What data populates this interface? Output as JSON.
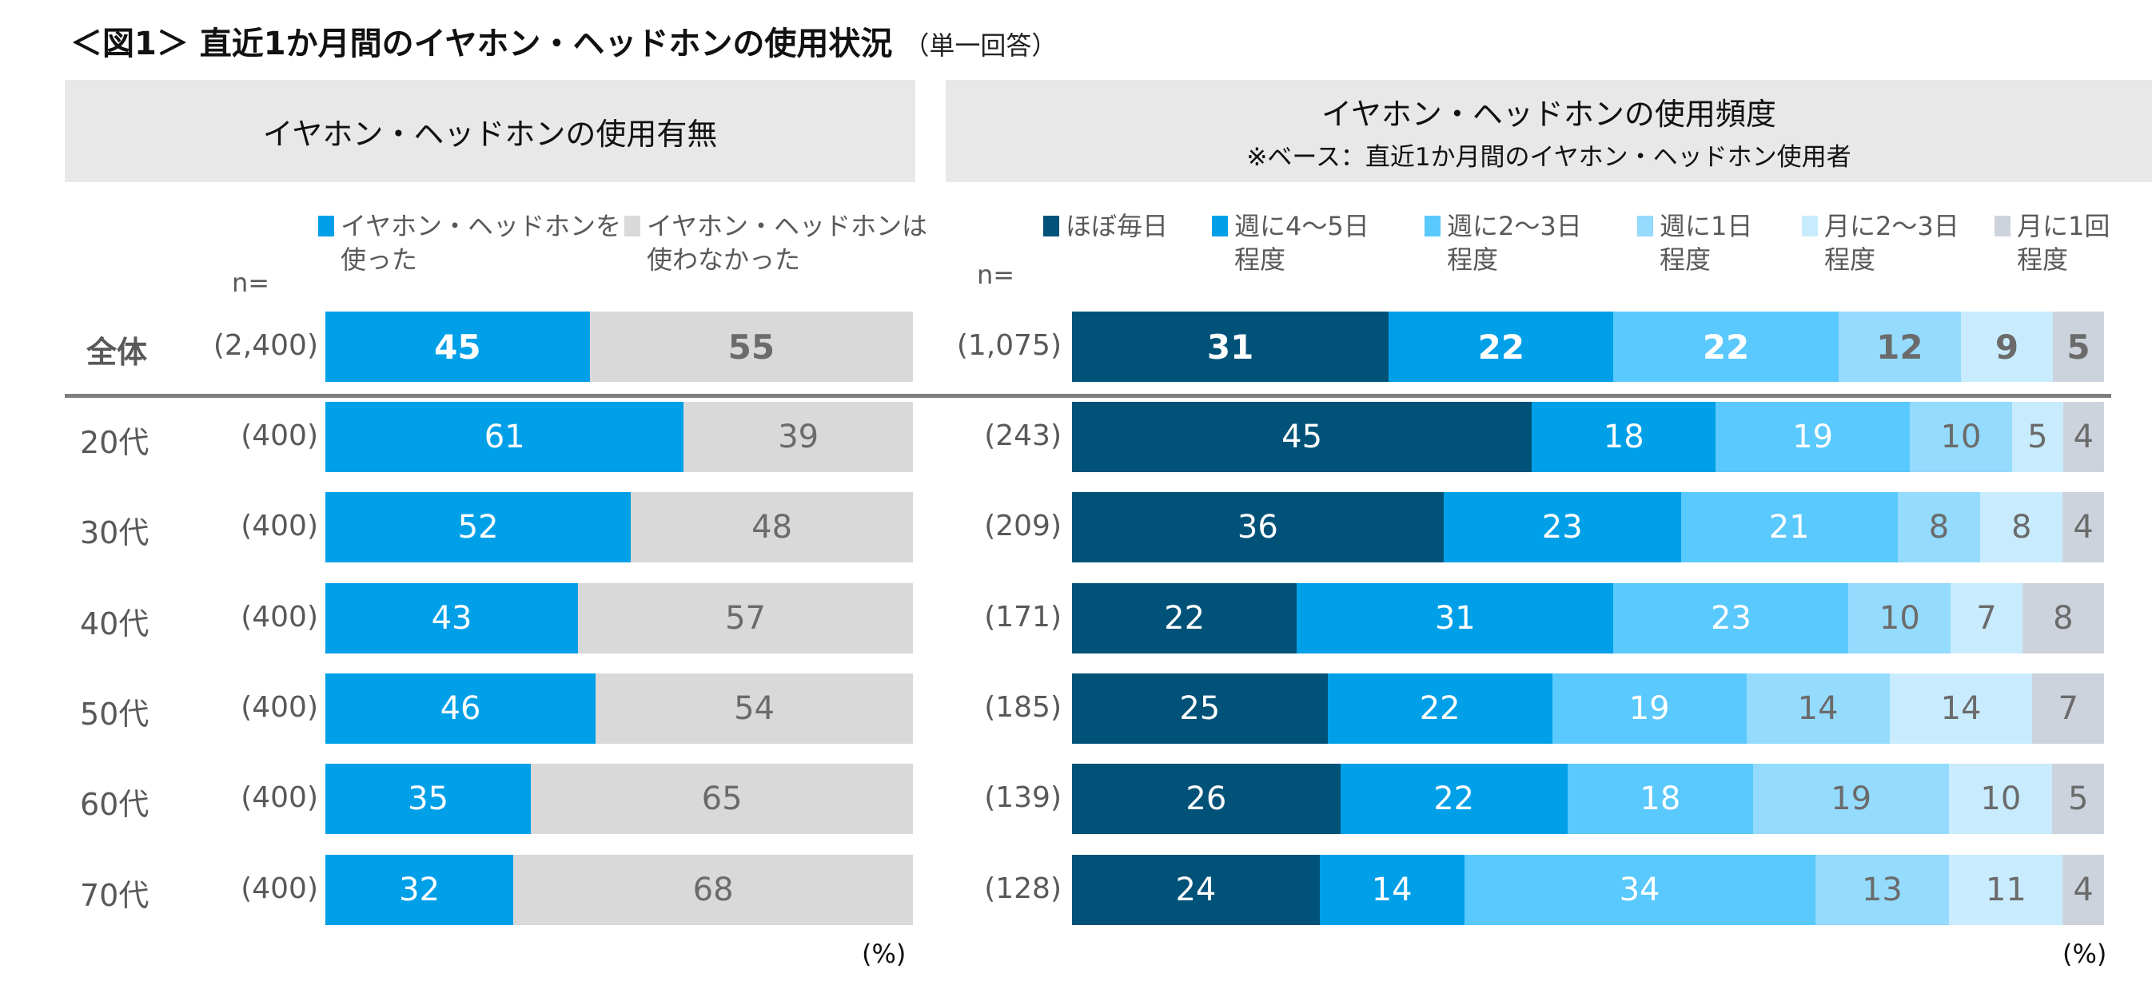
{
  "title": "＜図1＞ 直近1か月間のイヤホン・ヘッドホンの使用状況",
  "title_note": "（単一回答）",
  "left_panel": {
    "header": "イヤホン・ヘッドホンの使用有無",
    "n_label": "n=",
    "unit": "(%)"
  },
  "right_panel": {
    "header": "イヤホン・ヘッドホンの使用頻度",
    "subheader": "※ベース：直近1か月間のイヤホン・ヘッドホン使用者",
    "n_label": "n=",
    "unit": "(%)"
  },
  "chart_data": [
    {
      "type": "bar",
      "orientation": "horizontal-stacked-100",
      "categories": [
        "全体",
        "20代",
        "30代",
        "40代",
        "50代",
        "60代",
        "70代"
      ],
      "n": [
        "(2,400)",
        "(400)",
        "(400)",
        "(400)",
        "(400)",
        "(400)",
        "(400)"
      ],
      "legend_placement": "top",
      "series": [
        {
          "name": "イヤホン・ヘッドホンを使った",
          "legend_lines": [
            "イヤホン・ヘッドホンを",
            "使った"
          ],
          "color": "#00a0e9",
          "label_color": "#ffffff",
          "values": [
            45,
            61,
            52,
            43,
            46,
            35,
            32
          ]
        },
        {
          "name": "イヤホン・ヘッドホンは使わなかった",
          "legend_lines": [
            "イヤホン・ヘッドホンは",
            "使わなかった"
          ],
          "color": "#d9d9d9",
          "label_color": "#6b6b6b",
          "values": [
            55,
            39,
            48,
            57,
            54,
            65,
            68
          ]
        }
      ]
    },
    {
      "type": "bar",
      "orientation": "horizontal-stacked-100",
      "categories": [
        "全体",
        "20代",
        "30代",
        "40代",
        "50代",
        "60代",
        "70代"
      ],
      "n": [
        "(1,075)",
        "(243)",
        "(209)",
        "(171)",
        "(185)",
        "(139)",
        "(128)"
      ],
      "legend_placement": "top",
      "series": [
        {
          "name": "ほぼ毎日",
          "legend_lines": [
            "ほぼ毎日",
            ""
          ],
          "color": "#005278",
          "label_color": "#ffffff",
          "values": [
            31,
            45,
            36,
            22,
            25,
            26,
            24
          ]
        },
        {
          "name": "週に4～5日程度",
          "legend_lines": [
            "週に4～5日",
            "程度"
          ],
          "color": "#00a0e9",
          "label_color": "#ffffff",
          "values": [
            22,
            18,
            23,
            31,
            22,
            22,
            14
          ]
        },
        {
          "name": "週に2～3日程度",
          "legend_lines": [
            "週に2～3日",
            "程度"
          ],
          "color": "#5ac9fd",
          "label_color": "#ffffff",
          "values": [
            22,
            19,
            21,
            23,
            19,
            18,
            34
          ]
        },
        {
          "name": "週に1日程度",
          "legend_lines": [
            "週に1日",
            "程度"
          ],
          "color": "#94dbfd",
          "label_color": "#6b6b6b",
          "values": [
            12,
            10,
            8,
            10,
            14,
            19,
            13
          ]
        },
        {
          "name": "月に2～3日程度",
          "legend_lines": [
            "月に2～3日",
            "程度"
          ],
          "color": "#c8ecfd",
          "label_color": "#6b6b6b",
          "values": [
            9,
            5,
            8,
            7,
            14,
            10,
            11
          ]
        },
        {
          "name": "月に1回程度",
          "legend_lines": [
            "月に1回",
            "程度"
          ],
          "color": "#ccd3dc",
          "label_color": "#6b6b6b",
          "values": [
            5,
            4,
            4,
            8,
            7,
            5,
            4
          ]
        }
      ]
    }
  ]
}
